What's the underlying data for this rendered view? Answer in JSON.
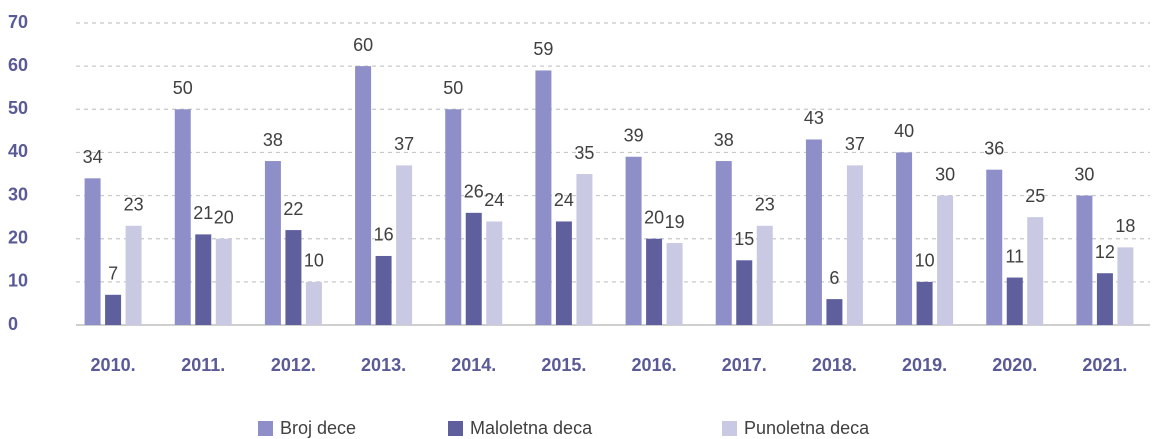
{
  "chart_data": {
    "type": "bar",
    "categories": [
      "2010.",
      "2011.",
      "2012.",
      "2013.",
      "2014.",
      "2015.",
      "2016.",
      "2017.",
      "2018.",
      "2019.",
      "2020.",
      "2021."
    ],
    "series": [
      {
        "name": "Broj dece",
        "color": "#8e8ec8",
        "values": [
          34,
          50,
          38,
          60,
          50,
          59,
          39,
          38,
          43,
          40,
          36,
          30
        ]
      },
      {
        "name": "Maloletna deca",
        "color": "#5f5f9e",
        "values": [
          7,
          21,
          22,
          16,
          26,
          24,
          20,
          15,
          6,
          10,
          11,
          12
        ]
      },
      {
        "name": "Punoletna deca",
        "color": "#c9c9e4",
        "values": [
          23,
          20,
          10,
          37,
          24,
          35,
          19,
          23,
          37,
          30,
          25,
          18
        ]
      }
    ],
    "ylim": [
      0,
      70
    ],
    "yticks": [
      0,
      10,
      20,
      30,
      40,
      50,
      60,
      70
    ],
    "grid": true,
    "legend": "bottom"
  }
}
